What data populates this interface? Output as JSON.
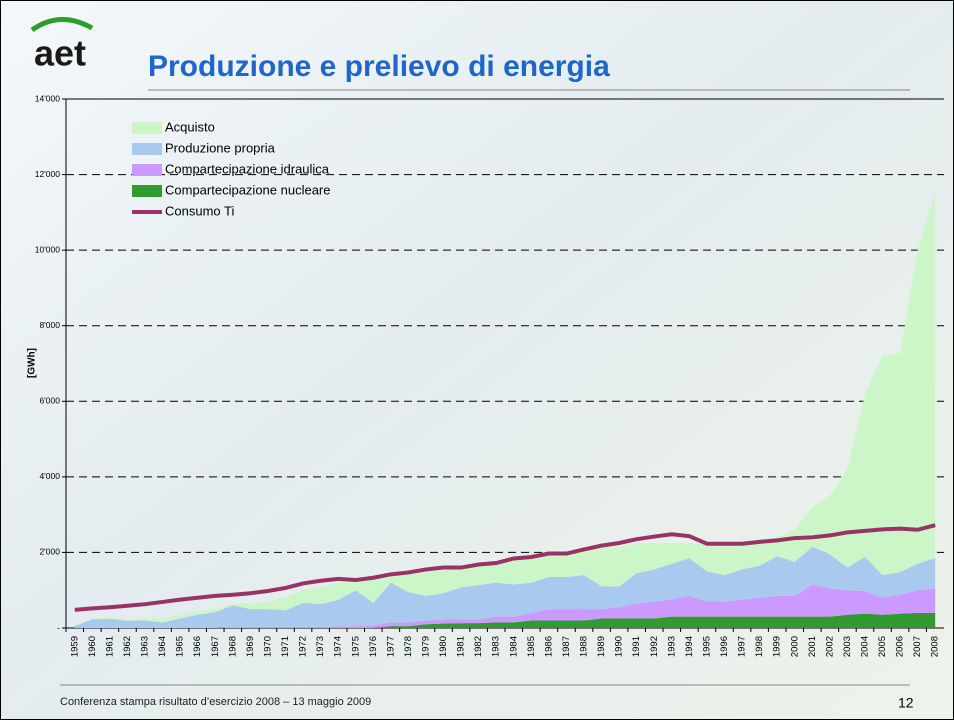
{
  "header": {
    "logo": "aet",
    "title": "Produzione e prelievo di energia"
  },
  "chart_data": {
    "type": "area",
    "stacked": true,
    "y_label": "[GWh]",
    "categories": [
      "1959",
      "1960",
      "1961",
      "1962",
      "1963",
      "1964",
      "1965",
      "1966",
      "1967",
      "1968",
      "1969",
      "1970",
      "1971",
      "1972",
      "1973",
      "1974",
      "1975",
      "1976",
      "1977",
      "1978",
      "1979",
      "1980",
      "1981",
      "1982",
      "1983",
      "1984",
      "1985",
      "1986",
      "1987",
      "1988",
      "1989",
      "1990",
      "1991",
      "1992",
      "1993",
      "1994",
      "1995",
      "1996",
      "1997",
      "1998",
      "1999",
      "2000",
      "2001",
      "2002",
      "2003",
      "2004",
      "2005",
      "2006",
      "2007",
      "2008"
    ],
    "series": [
      {
        "name": "Compartecipazione nucleare",
        "type": "area",
        "color": "#339933",
        "values": [
          0,
          0,
          0,
          0,
          0,
          0,
          0,
          0,
          0,
          0,
          0,
          0,
          0,
          0,
          0,
          0,
          0,
          0,
          50,
          50,
          100,
          120,
          130,
          130,
          150,
          150,
          200,
          200,
          200,
          200,
          250,
          250,
          250,
          250,
          300,
          300,
          300,
          300,
          300,
          300,
          300,
          300,
          300,
          300,
          350,
          380,
          350,
          380,
          400,
          400
        ]
      },
      {
        "name": "Compartecipazione idraulica",
        "type": "area",
        "color": "#cc99ff",
        "values": [
          0,
          0,
          0,
          0,
          0,
          0,
          0,
          0,
          0,
          20,
          30,
          30,
          30,
          30,
          30,
          40,
          50,
          60,
          100,
          100,
          100,
          100,
          100,
          100,
          150,
          150,
          200,
          300,
          300,
          300,
          250,
          300,
          400,
          450,
          450,
          550,
          400,
          400,
          450,
          500,
          550,
          550,
          850,
          750,
          650,
          600,
          450,
          500,
          600,
          650
        ]
      },
      {
        "name": "Produzione propria",
        "type": "area",
        "color": "#a9c9ee",
        "values": [
          50,
          230,
          240,
          190,
          200,
          150,
          250,
          350,
          420,
          580,
          470,
          470,
          440,
          630,
          600,
          700,
          950,
          600,
          1050,
          800,
          650,
          700,
          850,
          900,
          900,
          850,
          800,
          850,
          850,
          900,
          600,
          550,
          800,
          850,
          950,
          1000,
          800,
          700,
          800,
          850,
          1050,
          900,
          1000,
          900,
          600,
          900,
          600,
          600,
          700,
          800
        ]
      },
      {
        "name": "Acquisto",
        "type": "area",
        "color": "#ccf5c8",
        "values": [
          30,
          20,
          30,
          40,
          50,
          100,
          100,
          100,
          80,
          50,
          150,
          200,
          350,
          350,
          450,
          450,
          250,
          700,
          150,
          500,
          650,
          600,
          550,
          600,
          550,
          700,
          700,
          600,
          650,
          650,
          1000,
          1050,
          800,
          700,
          550,
          400,
          700,
          800,
          700,
          650,
          500,
          850,
          1050,
          1550,
          2600,
          4300,
          5800,
          5800,
          8300,
          9700
        ]
      },
      {
        "name": "Consumo Ti",
        "type": "line",
        "color": "#993366",
        "values": [
          480,
          520,
          550,
          590,
          630,
          690,
          750,
          800,
          850,
          880,
          920,
          980,
          1060,
          1180,
          1250,
          1300,
          1270,
          1330,
          1420,
          1470,
          1550,
          1600,
          1600,
          1680,
          1720,
          1840,
          1880,
          1970,
          1970,
          2080,
          2180,
          2250,
          2350,
          2420,
          2480,
          2430,
          2230,
          2230,
          2230,
          2280,
          2320,
          2380,
          2400,
          2450,
          2530,
          2570,
          2610,
          2630,
          2600,
          2720
        ]
      }
    ],
    "ylim": [
      0,
      14000
    ],
    "yticks": [
      {
        "value": 0,
        "label": "-"
      },
      {
        "value": 2000,
        "label": "2'000"
      },
      {
        "value": 4000,
        "label": "4'000"
      },
      {
        "value": 6000,
        "label": "6'000"
      },
      {
        "value": 8000,
        "label": "8'000"
      },
      {
        "value": 10000,
        "label": "10'000"
      },
      {
        "value": 12000,
        "label": "12'000"
      },
      {
        "value": 14000,
        "label": "14'000"
      }
    ],
    "grid": true,
    "legend": "top-left"
  },
  "footer": {
    "text": "Conferenza stampa risultato d’esercizio 2008 – 13 maggio 2009",
    "page": "12"
  }
}
